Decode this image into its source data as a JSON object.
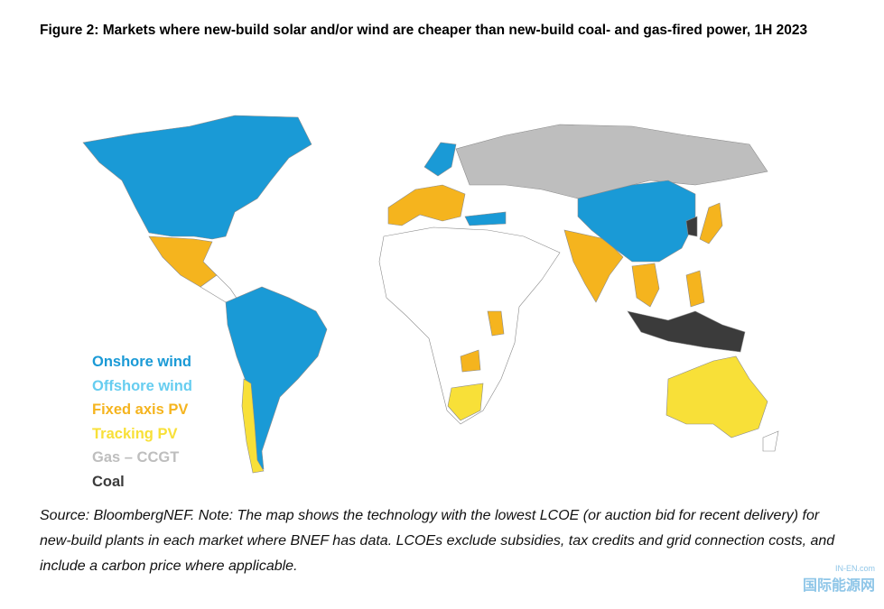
{
  "header": {
    "title": "Figure 2: Markets where new-build solar and/or wind are cheaper than new-build coal- and gas-fired power, 1H 2023"
  },
  "legend": [
    {
      "label": "Onshore wind",
      "color": "#1a9ad6"
    },
    {
      "label": "Offshore wind",
      "color": "#66cdf0"
    },
    {
      "label": "Fixed axis PV",
      "color": "#f5b41e"
    },
    {
      "label": "Tracking PV",
      "color": "#f8e038"
    },
    {
      "label": "Gas – CCGT",
      "color": "#bebebe"
    },
    {
      "label": "Coal",
      "color": "#3b3b3b"
    }
  ],
  "footer": {
    "source": "Source: BloombergNEF. Note: The map shows the technology with the lowest LCOE (or auction bid for recent delivery) for new-build plants in each market where BNEF has data. LCOEs exclude subsidies, tax credits and grid connection costs, and include a carbon price where applicable."
  },
  "watermark": {
    "site": "IN-EN.com",
    "name": "国际能源网"
  }
}
